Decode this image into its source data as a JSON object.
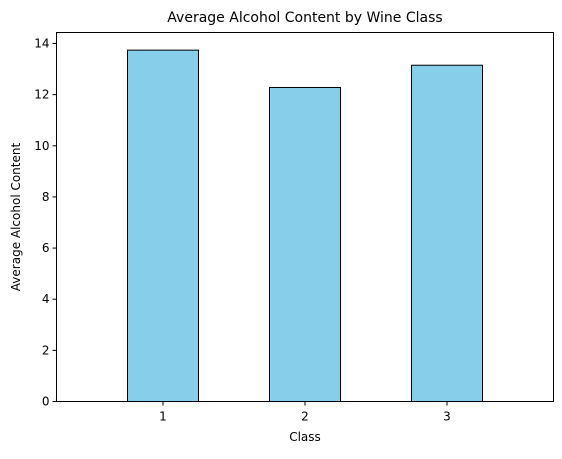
{
  "chart_data": {
    "type": "bar",
    "title": "Average Alcohol Content by Wine Class",
    "xlabel": "Class",
    "ylabel": "Average Alcohol Content",
    "categories": [
      "1",
      "2",
      "3"
    ],
    "values": [
      13.74,
      12.28,
      13.15
    ],
    "ylim": [
      0,
      14.43
    ],
    "yticks": [
      0,
      2,
      4,
      6,
      8,
      10,
      12,
      14
    ],
    "grid": false,
    "legend": "none",
    "bar_color": "#87ceeb",
    "bar_edge_color": "#000000"
  }
}
